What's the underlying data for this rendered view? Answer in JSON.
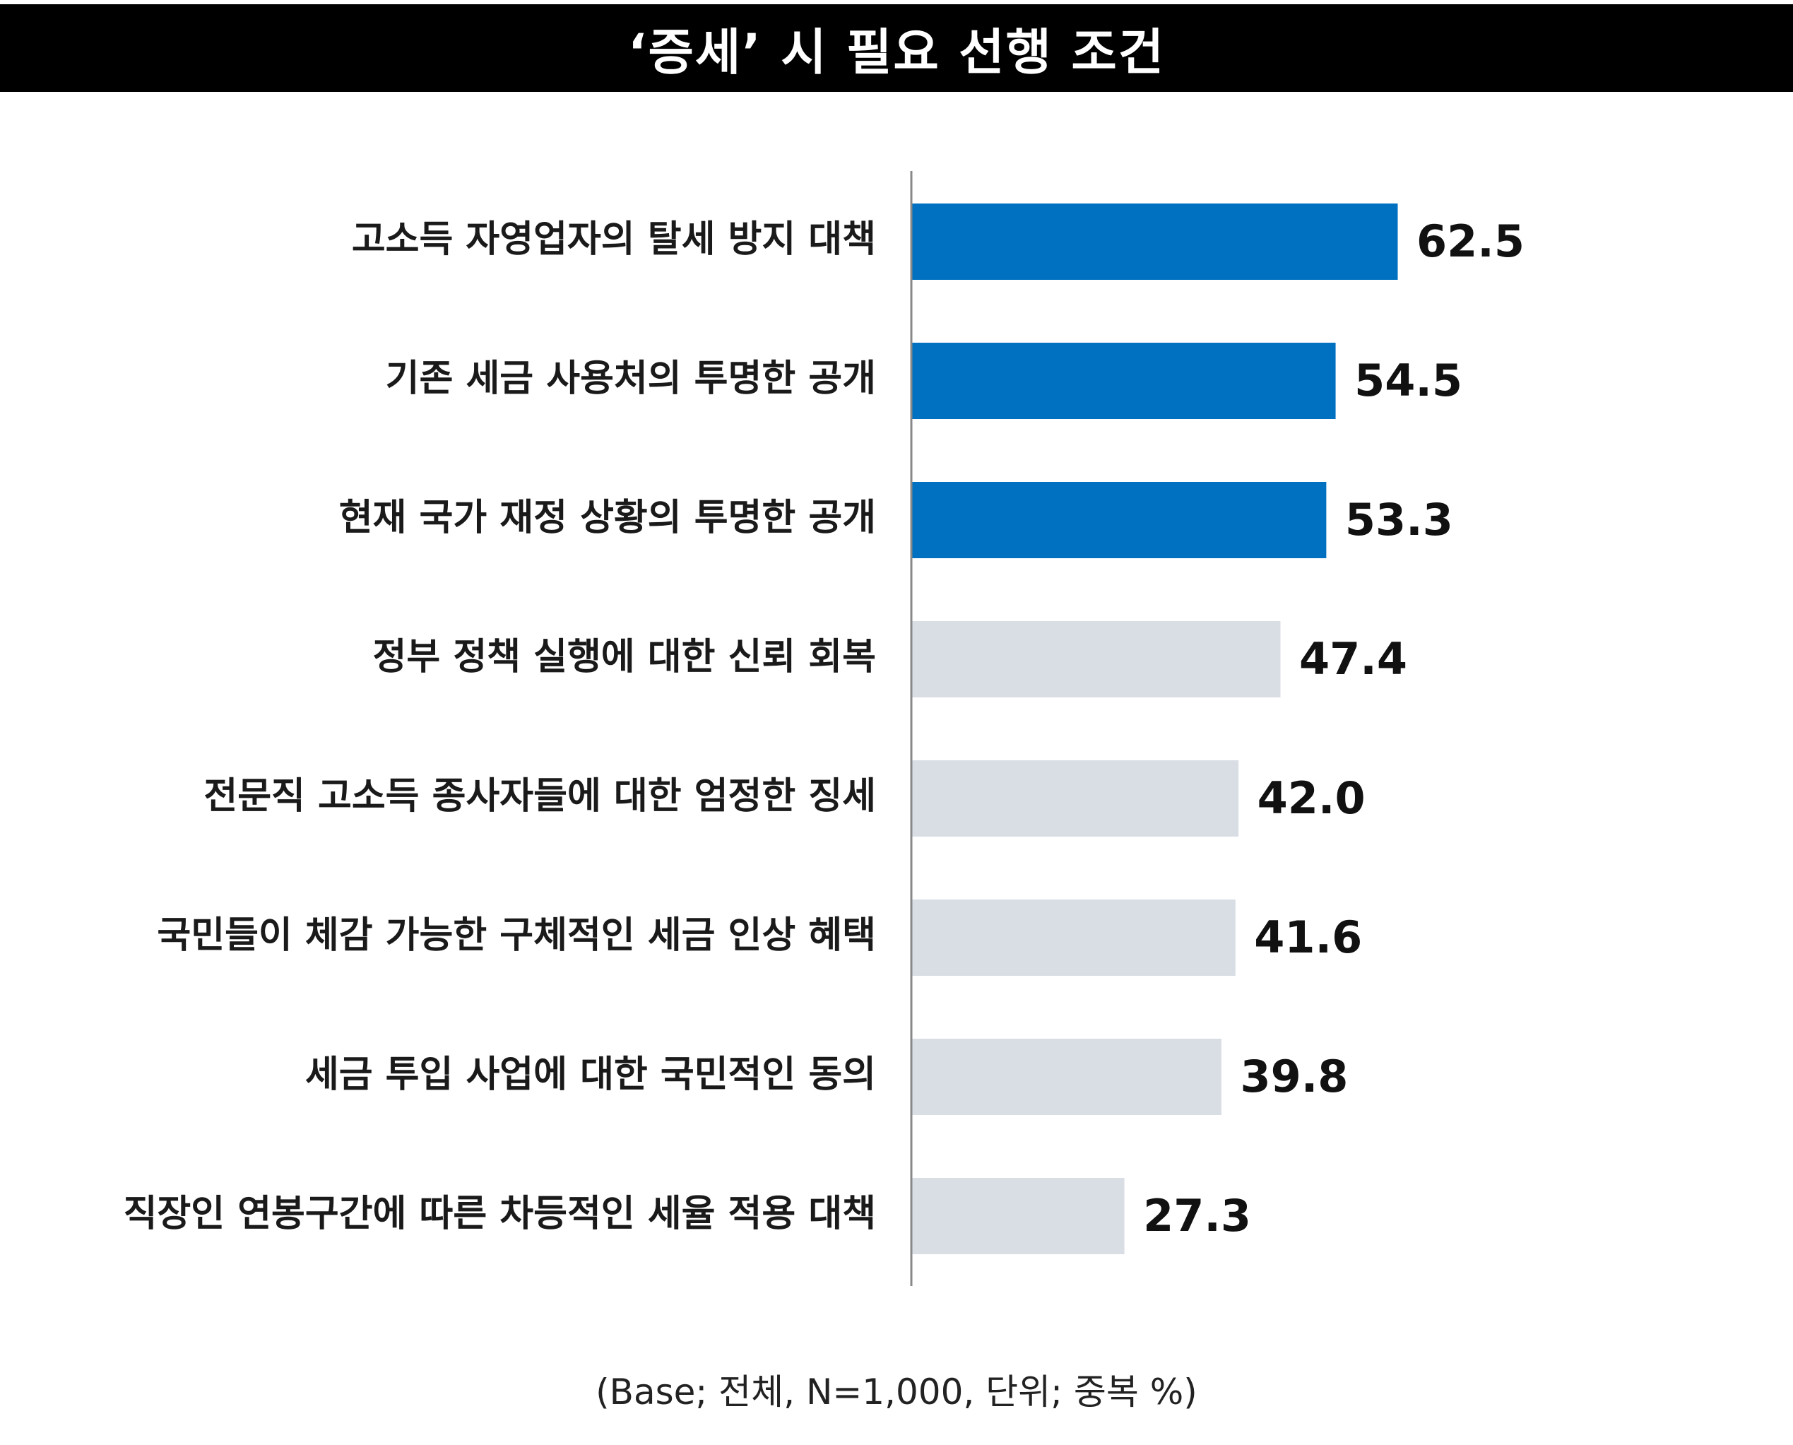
{
  "title": "‘증세’ 시 필요 선행 조건",
  "footnote": "(Base; 전체, N=1,000, 단위; 중복 %)",
  "chart_data": {
    "type": "bar",
    "orientation": "horizontal",
    "title": "‘증세’ 시 필요 선행 조건",
    "categories": [
      "고소득 자영업자의 탈세 방지 대책",
      "기존 세금 사용처의 투명한 공개",
      "현재 국가 재정 상황의 투명한 공개",
      "정부 정책 실행에 대한 신뢰 회복",
      "전문직 고소득 종사자들에 대한 엄정한 징세",
      "국민들이 체감 가능한 구체적인 세금 인상 혜택",
      "세금 투입 사업에  대한 국민적인 동의",
      "직장인 연봉구간에 따른 차등적인 세율 적용 대책"
    ],
    "values": [
      62.5,
      54.5,
      53.3,
      47.4,
      42.0,
      41.6,
      39.8,
      27.3
    ],
    "value_labels": [
      "62.5",
      "54.5",
      "53.3",
      "47.4",
      "42.0",
      "41.6",
      "39.8",
      "27.3"
    ],
    "highlight_count": 3,
    "colors": {
      "highlight": "#0070c0",
      "default": "#d9dee5",
      "axis": "#888888"
    },
    "xlim": [
      0,
      100
    ],
    "grid": false,
    "legend": "none"
  }
}
